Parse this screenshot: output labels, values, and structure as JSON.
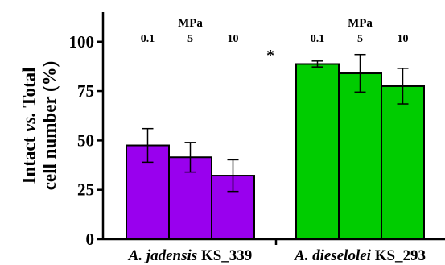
{
  "chart_data": {
    "type": "bar",
    "ylabel_lines": [
      [
        "Intact ",
        "vs.",
        " Total"
      ],
      [
        "cell number (%)"
      ]
    ],
    "ylim": [
      0,
      115
    ],
    "yticks": [
      0,
      25,
      50,
      75,
      100
    ],
    "grid": false,
    "legend": "none",
    "significance_marker": "*",
    "groups": [
      {
        "name": "A. jadensis KS_339",
        "name_parts": [
          {
            "text": "A. jadensis",
            "italic": true
          },
          {
            "text": " KS_339",
            "italic": false
          }
        ],
        "color": "#9900ee",
        "pressure_unit": "MPa",
        "pressures": [
          "0.1",
          "5",
          "10"
        ],
        "values": [
          47.5,
          41.5,
          32.2
        ],
        "errors": [
          8.5,
          7.5,
          8.0
        ]
      },
      {
        "name": "A. dieselolei KS_293",
        "name_parts": [
          {
            "text": "A. dieselolei",
            "italic": true
          },
          {
            "text": " KS_293",
            "italic": false
          }
        ],
        "color": "#00cc00",
        "pressure_unit": "MPa",
        "pressures": [
          "0.1",
          "5",
          "10"
        ],
        "values": [
          88.7,
          84.0,
          77.5
        ],
        "errors": [
          1.5,
          9.5,
          9.0
        ]
      }
    ]
  }
}
